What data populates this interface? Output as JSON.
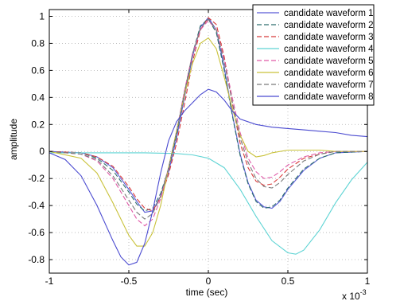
{
  "chart_data": {
    "type": "line",
    "xlabel": "time (sec)",
    "ylabel": "amplitude",
    "x_multiplier_label": "x 10",
    "x_multiplier_exponent": "-3",
    "xlim": [
      -1,
      1
    ],
    "ylim": [
      -0.9,
      1.05
    ],
    "xticks": [
      -1,
      -0.5,
      0,
      0.5,
      1
    ],
    "xtick_labels": [
      "-1",
      "-0.5",
      "0",
      "0.5",
      "1"
    ],
    "yticks": [
      -0.8,
      -0.6,
      -0.4,
      -0.2,
      0,
      0.2,
      0.4,
      0.6,
      0.8,
      1
    ],
    "ytick_labels": [
      "-0.8",
      "-0.6",
      "-0.4",
      "-0.2",
      "0",
      "0.2",
      "0.4",
      "0.6",
      "0.8",
      "1"
    ],
    "grid": true,
    "legend_position": "top-right",
    "series": [
      {
        "name": "candidate waveform 1",
        "color": "#5a5ad8",
        "dash": "",
        "x": [
          -1,
          -0.8,
          -0.7,
          -0.6,
          -0.5,
          -0.45,
          -0.4,
          -0.35,
          -0.3,
          -0.25,
          -0.2,
          -0.15,
          -0.1,
          -0.05,
          0,
          0.05,
          0.1,
          0.15,
          0.2,
          0.25,
          0.3,
          0.35,
          0.4,
          0.45,
          0.5,
          0.6,
          0.7,
          0.8,
          1
        ],
        "y": [
          0,
          -0.01,
          -0.04,
          -0.12,
          -0.28,
          -0.37,
          -0.45,
          -0.44,
          -0.33,
          -0.15,
          0.1,
          0.4,
          0.7,
          0.92,
          0.99,
          0.9,
          0.62,
          0.28,
          -0.02,
          -0.23,
          -0.36,
          -0.41,
          -0.42,
          -0.37,
          -0.28,
          -0.14,
          -0.05,
          -0.01,
          0
        ]
      },
      {
        "name": "candidate waveform 2",
        "color": "#2d6e6e",
        "dash": "6,3",
        "x": [
          -1,
          -0.8,
          -0.7,
          -0.6,
          -0.5,
          -0.45,
          -0.4,
          -0.35,
          -0.3,
          -0.25,
          -0.2,
          -0.15,
          -0.1,
          -0.05,
          0,
          0.05,
          0.1,
          0.15,
          0.2,
          0.25,
          0.3,
          0.35,
          0.4,
          0.45,
          0.5,
          0.6,
          0.7,
          0.8,
          1
        ],
        "y": [
          0,
          -0.01,
          -0.05,
          -0.14,
          -0.3,
          -0.39,
          -0.44,
          -0.42,
          -0.31,
          -0.13,
          0.12,
          0.42,
          0.72,
          0.93,
          0.98,
          0.88,
          0.6,
          0.27,
          -0.03,
          -0.24,
          -0.37,
          -0.42,
          -0.41,
          -0.36,
          -0.27,
          -0.13,
          -0.05,
          -0.01,
          0
        ]
      },
      {
        "name": "candidate waveform 3",
        "color": "#d83a3a",
        "dash": "6,3",
        "x": [
          -1,
          -0.8,
          -0.7,
          -0.6,
          -0.5,
          -0.45,
          -0.4,
          -0.35,
          -0.3,
          -0.25,
          -0.2,
          -0.15,
          -0.1,
          -0.05,
          0,
          0.05,
          0.1,
          0.15,
          0.2,
          0.25,
          0.3,
          0.35,
          0.4,
          0.45,
          0.5,
          0.6,
          0.7,
          0.8,
          1
        ],
        "y": [
          0,
          -0.01,
          -0.04,
          -0.11,
          -0.26,
          -0.35,
          -0.42,
          -0.44,
          -0.34,
          -0.17,
          0.06,
          0.35,
          0.66,
          0.9,
          0.99,
          0.94,
          0.7,
          0.36,
          0.06,
          -0.12,
          -0.22,
          -0.25,
          -0.24,
          -0.19,
          -0.13,
          -0.05,
          -0.02,
          0,
          0
        ]
      },
      {
        "name": "candidate waveform 4",
        "color": "#5fd4d4",
        "dash": "",
        "x": [
          -1,
          -0.6,
          -0.4,
          -0.2,
          -0.1,
          0,
          0.1,
          0.2,
          0.3,
          0.4,
          0.5,
          0.55,
          0.6,
          0.7,
          0.8,
          0.9,
          1
        ],
        "y": [
          -0.01,
          -0.01,
          -0.01,
          -0.015,
          -0.025,
          -0.05,
          -0.12,
          -0.28,
          -0.48,
          -0.66,
          -0.75,
          -0.76,
          -0.73,
          -0.58,
          -0.38,
          -0.21,
          -0.08
        ]
      },
      {
        "name": "candidate waveform 5",
        "color": "#e05aa8",
        "dash": "6,3",
        "x": [
          -1,
          -0.8,
          -0.7,
          -0.6,
          -0.5,
          -0.45,
          -0.4,
          -0.35,
          -0.3,
          -0.25,
          -0.2,
          -0.15,
          -0.1,
          -0.05,
          0,
          0.05,
          0.1,
          0.15,
          0.2,
          0.25,
          0.3,
          0.35,
          0.4,
          0.45,
          0.5,
          0.6,
          0.7,
          0.8,
          1
        ],
        "y": [
          0,
          -0.02,
          -0.07,
          -0.2,
          -0.4,
          -0.5,
          -0.55,
          -0.5,
          -0.35,
          -0.12,
          0.15,
          0.45,
          0.72,
          0.9,
          0.97,
          0.9,
          0.68,
          0.4,
          0.14,
          -0.05,
          -0.15,
          -0.2,
          -0.19,
          -0.15,
          -0.1,
          -0.04,
          -0.01,
          0,
          0
        ]
      },
      {
        "name": "candidate waveform 6",
        "color": "#c9c23a",
        "dash": "",
        "x": [
          -1,
          -0.8,
          -0.7,
          -0.6,
          -0.5,
          -0.45,
          -0.4,
          -0.35,
          -0.3,
          -0.25,
          -0.2,
          -0.15,
          -0.1,
          -0.05,
          0,
          0.05,
          0.1,
          0.15,
          0.2,
          0.25,
          0.3,
          0.35,
          0.4,
          0.5,
          0.6,
          0.7,
          0.8,
          1
        ],
        "y": [
          0,
          -0.05,
          -0.16,
          -0.38,
          -0.62,
          -0.7,
          -0.7,
          -0.6,
          -0.4,
          -0.12,
          0.15,
          0.42,
          0.65,
          0.8,
          0.84,
          0.76,
          0.55,
          0.32,
          0.12,
          0.0,
          -0.04,
          -0.03,
          -0.01,
          0.01,
          0.01,
          0.01,
          0.0,
          0
        ]
      },
      {
        "name": "candidate waveform 7",
        "color": "#7a7a7a",
        "dash": "6,3",
        "x": [
          -1,
          -0.8,
          -0.7,
          -0.6,
          -0.5,
          -0.45,
          -0.4,
          -0.35,
          -0.3,
          -0.25,
          -0.2,
          -0.15,
          -0.1,
          -0.05,
          0,
          0.05,
          0.1,
          0.15,
          0.2,
          0.25,
          0.3,
          0.35,
          0.4,
          0.45,
          0.5,
          0.6,
          0.7,
          0.8,
          1
        ],
        "y": [
          0,
          -0.02,
          -0.06,
          -0.18,
          -0.36,
          -0.45,
          -0.5,
          -0.46,
          -0.33,
          -0.12,
          0.14,
          0.44,
          0.72,
          0.91,
          0.98,
          0.9,
          0.66,
          0.37,
          0.1,
          -0.08,
          -0.2,
          -0.26,
          -0.27,
          -0.23,
          -0.17,
          -0.07,
          -0.02,
          0,
          0
        ]
      },
      {
        "name": "candidate waveform 8",
        "color": "#4a4ad0",
        "dash": "",
        "x": [
          -1,
          -0.9,
          -0.8,
          -0.7,
          -0.6,
          -0.55,
          -0.5,
          -0.45,
          -0.4,
          -0.35,
          -0.3,
          -0.25,
          -0.2,
          -0.15,
          -0.1,
          -0.05,
          0,
          0.05,
          0.1,
          0.15,
          0.2,
          0.3,
          0.4,
          0.5,
          0.6,
          0.7,
          0.8,
          0.9,
          1
        ],
        "y": [
          -0.01,
          -0.06,
          -0.18,
          -0.4,
          -0.66,
          -0.78,
          -0.84,
          -0.82,
          -0.68,
          -0.44,
          -0.16,
          0.08,
          0.22,
          0.3,
          0.36,
          0.42,
          0.46,
          0.44,
          0.38,
          0.3,
          0.24,
          0.2,
          0.18,
          0.17,
          0.16,
          0.15,
          0.14,
          0.12,
          0.11
        ]
      }
    ]
  }
}
